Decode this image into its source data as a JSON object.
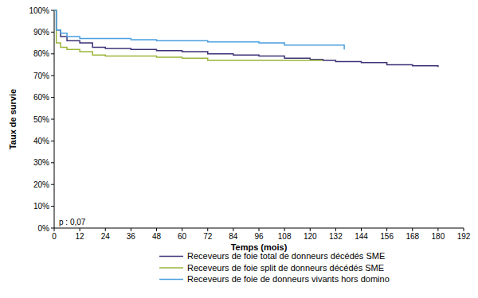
{
  "chart_data": {
    "type": "line",
    "y_label": "Taux de survie",
    "x_label": "Temps (mois)",
    "annotation": "p : 0,07",
    "line_style": "step",
    "legend": "bottom",
    "grid": false,
    "x": [
      0,
      1,
      3,
      6,
      12,
      18,
      24,
      36,
      48,
      60,
      72,
      84,
      96,
      108,
      120,
      126,
      132,
      136,
      144,
      156,
      168,
      180
    ],
    "xlim": [
      0,
      192
    ],
    "xticks": [
      0,
      12,
      24,
      36,
      48,
      60,
      72,
      84,
      96,
      108,
      120,
      132,
      144,
      156,
      168,
      180,
      192
    ],
    "ylim": [
      0,
      100
    ],
    "yticks": [
      {
        "value": 0,
        "label": "0%"
      },
      {
        "value": 10,
        "label": "10%"
      },
      {
        "value": 20,
        "label": "20%"
      },
      {
        "value": 30,
        "label": "30%"
      },
      {
        "value": 40,
        "label": "40%"
      },
      {
        "value": 50,
        "label": "50%"
      },
      {
        "value": 60,
        "label": "60%"
      },
      {
        "value": 70,
        "label": "70%"
      },
      {
        "value": 80,
        "label": "80%"
      },
      {
        "value": 90,
        "label": "90%"
      },
      {
        "value": 100,
        "label": "100%"
      }
    ],
    "series": [
      {
        "name": "Receveurs de foie total de donneurs décédés SME",
        "color": "#3b3277",
        "values": [
          100,
          91,
          88,
          86,
          85,
          83,
          82.5,
          82,
          81.5,
          81,
          80,
          79.5,
          79,
          78,
          77.5,
          77,
          76.5,
          76.5,
          76,
          75,
          74.5,
          74
        ]
      },
      {
        "name": "Receveurs de foie split de donneurs décédés SME",
        "color": "#9bb53c",
        "values": [
          100,
          85,
          83,
          82,
          81,
          79.5,
          79,
          79,
          78.5,
          78,
          77,
          77,
          77,
          77,
          77,
          77,
          null,
          null,
          null,
          null,
          null,
          null
        ]
      },
      {
        "name": "Receveurs de foie de donneurs vivants hors domino",
        "color": "#4a9fe0",
        "values": [
          100,
          91,
          89.5,
          88,
          87,
          87,
          87,
          86.5,
          86,
          86,
          85.5,
          85.5,
          85,
          84,
          84,
          84,
          84,
          82,
          null,
          null,
          null,
          null
        ]
      }
    ]
  }
}
